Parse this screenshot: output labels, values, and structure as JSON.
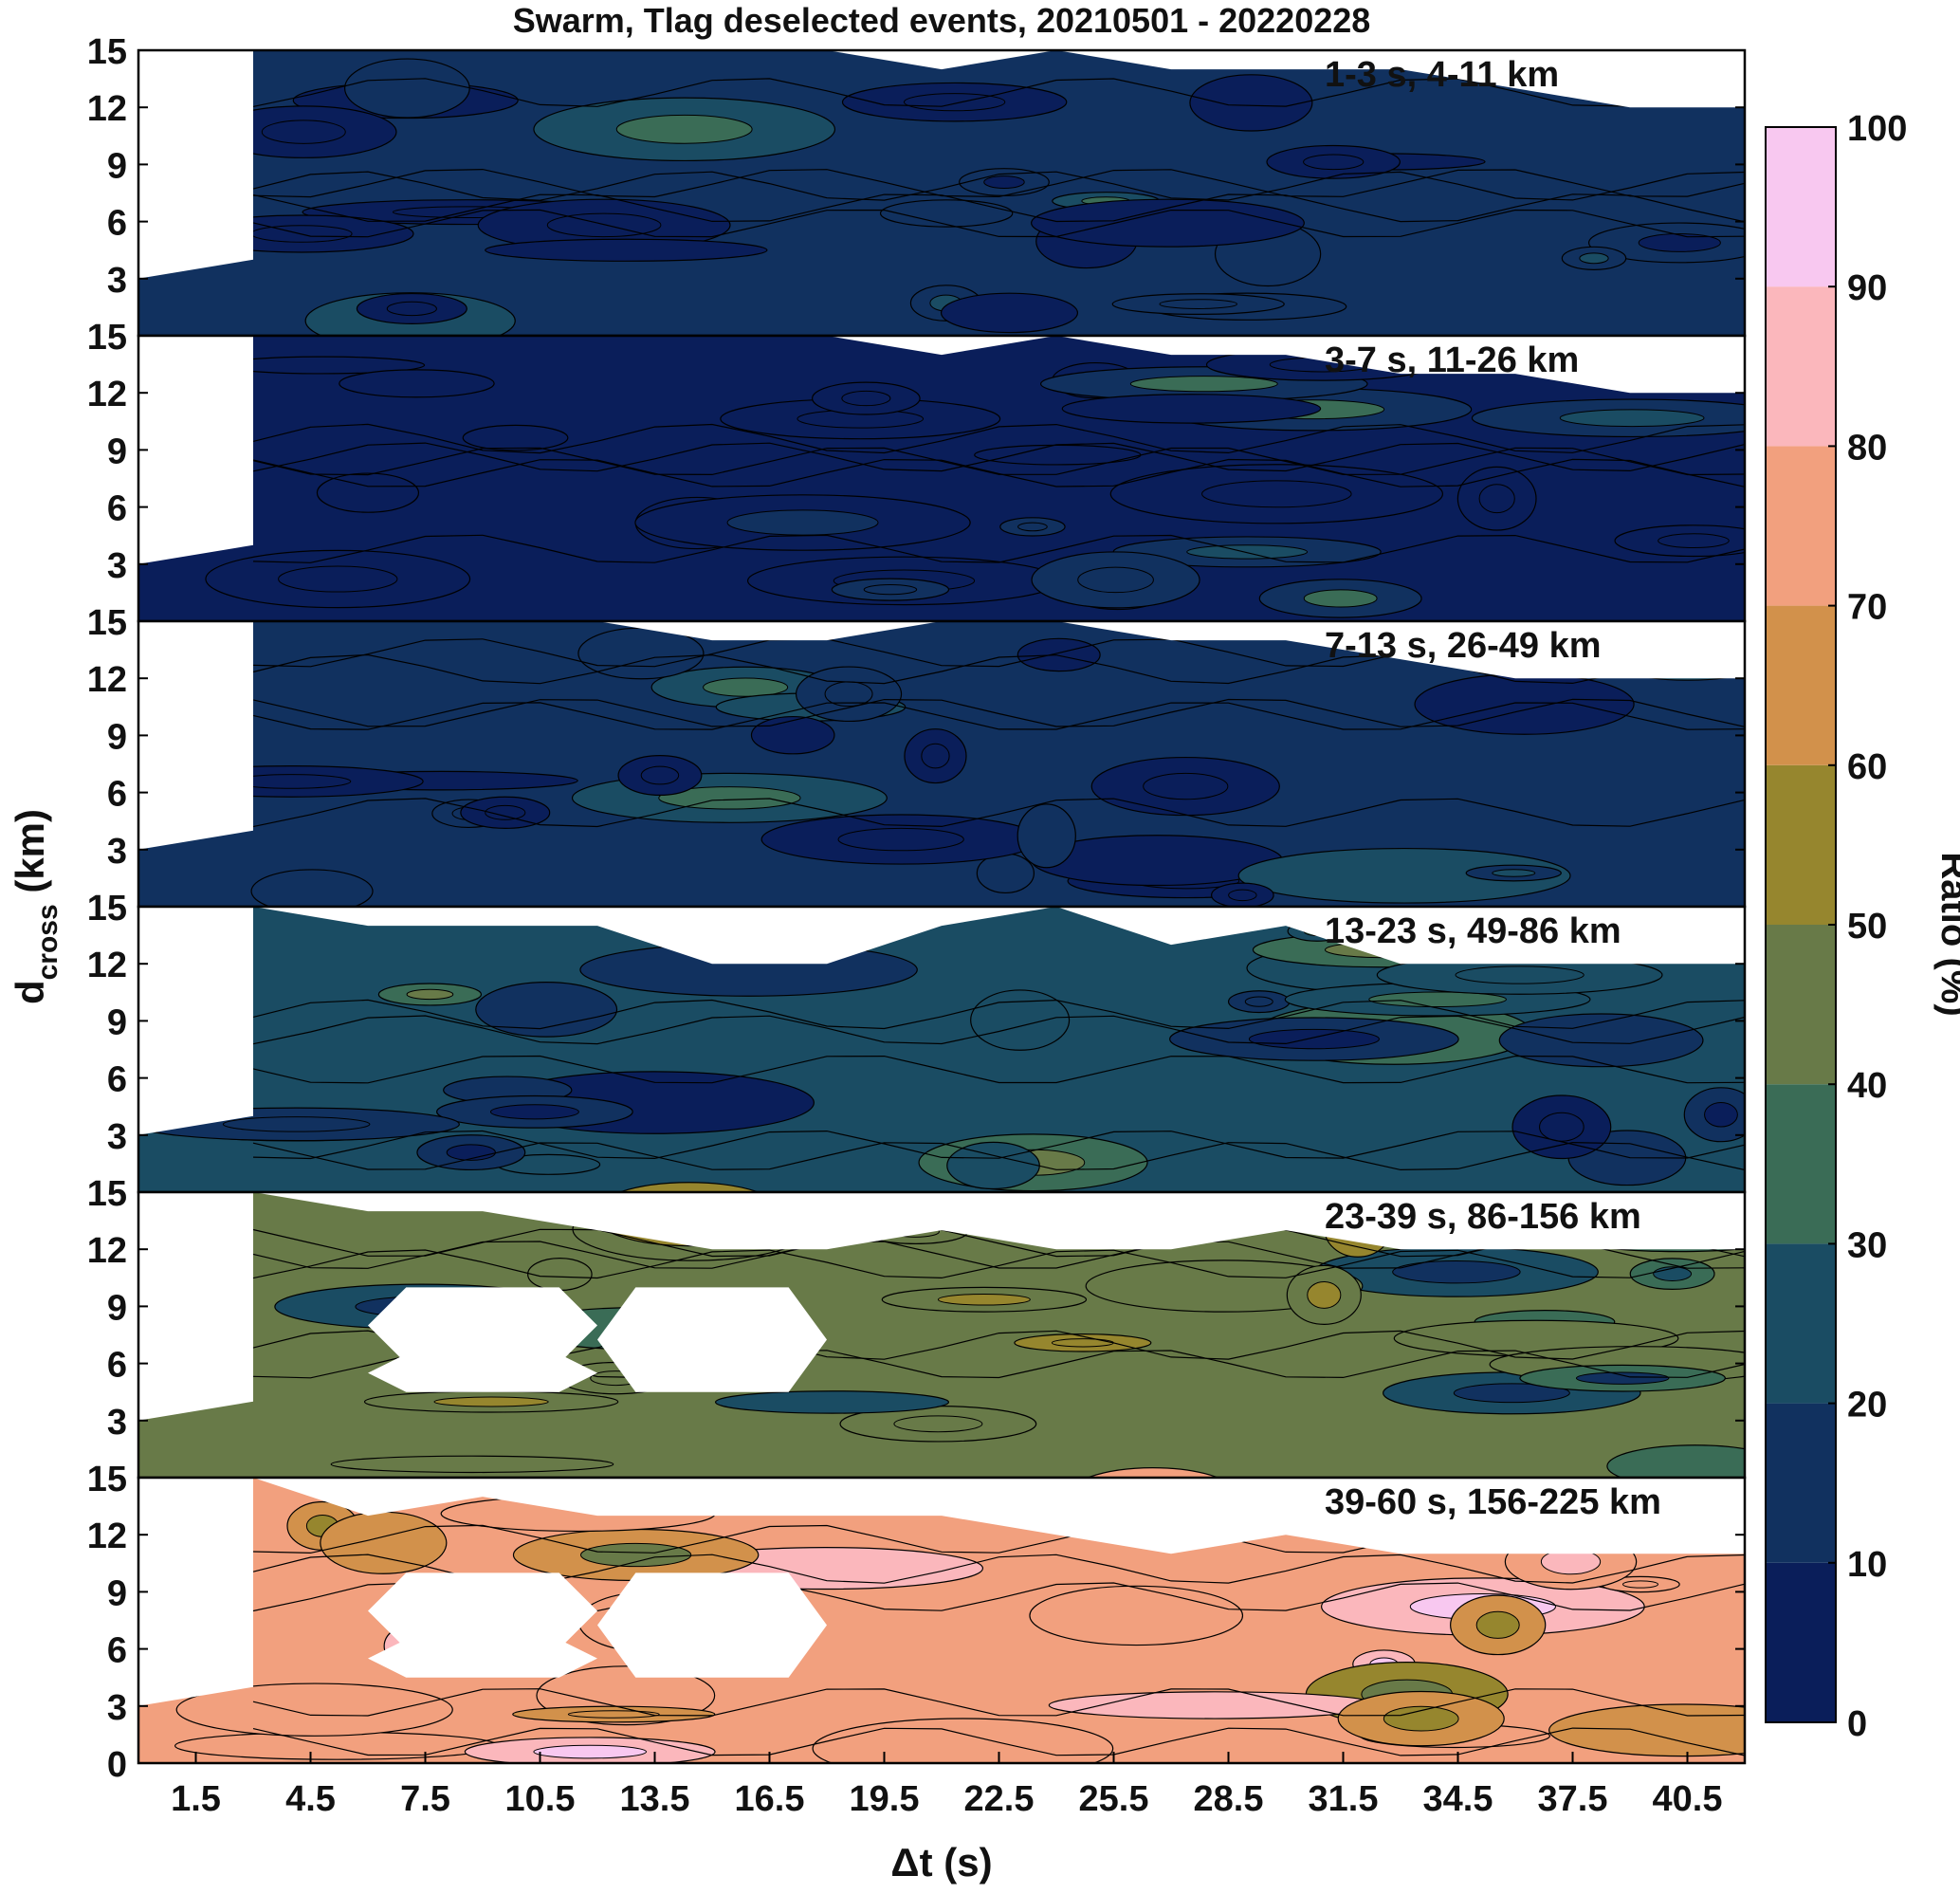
{
  "chart_data": {
    "type": "heatmap",
    "title": "Swarm, Tlag deselected events, 20210501 - 20220228",
    "xlabel": "Δt (s)",
    "ylabel": "d",
    "ylabel_sub": "cross",
    "ylabel_unit": " (km)",
    "xlim": [
      0,
      42
    ],
    "x_ticks": [
      1.5,
      4.5,
      7.5,
      10.5,
      13.5,
      16.5,
      19.5,
      22.5,
      25.5,
      28.5,
      31.5,
      34.5,
      37.5,
      40.5
    ],
    "x_tick_labels": [
      "1.5",
      "4.5",
      "7.5",
      "10.5",
      "13.5",
      "16.5",
      "19.5",
      "22.5",
      "25.5",
      "28.5",
      "31.5",
      "34.5",
      "37.5",
      "40.5"
    ],
    "ylim": [
      0,
      15
    ],
    "y_ticks": [
      3,
      6,
      9,
      12,
      15
    ],
    "bottom_panel_y_ticks": [
      0,
      3,
      6,
      9,
      12,
      15
    ],
    "colorbar": {
      "label": "Ratio (%)",
      "range": [
        0,
        100
      ],
      "ticks": [
        0,
        10,
        20,
        30,
        40,
        50,
        60,
        70,
        80,
        90,
        100
      ],
      "colors": [
        "#0a1e5a",
        "#11315f",
        "#1a4c63",
        "#3a6c56",
        "#687a48",
        "#96862e",
        "#d2914b",
        "#f2a07e",
        "#fbb7bc",
        "#f8c8f0"
      ]
    },
    "panels": [
      {
        "label": "1-3 s, 4-11 km",
        "mean_ratio": 12,
        "blank_top": [
          15,
          15,
          15,
          15,
          15,
          15,
          14,
          15,
          14,
          14,
          14,
          13,
          12,
          12
        ]
      },
      {
        "label": "3-7 s, 11-26 km",
        "mean_ratio": 5,
        "blank_top": [
          15,
          15,
          15,
          15,
          15,
          15,
          14,
          15,
          14,
          14,
          13,
          13,
          12,
          12
        ]
      },
      {
        "label": "7-13 s, 26-49 km",
        "mean_ratio": 12,
        "blank_top": [
          15,
          15,
          15,
          15,
          14,
          14,
          15,
          15,
          14,
          14,
          13,
          12,
          12,
          12
        ]
      },
      {
        "label": "13-23 s, 49-86 km",
        "mean_ratio": 22,
        "blank_top": [
          15,
          14,
          14,
          14,
          12,
          12,
          14,
          15,
          13,
          14,
          12,
          12,
          12,
          12
        ]
      },
      {
        "label": "23-39 s, 86-156 km",
        "mean_ratio": 42,
        "blank_top": [
          15,
          14,
          14,
          13,
          12,
          12,
          13,
          12,
          12,
          13,
          12,
          12,
          12,
          12
        ]
      },
      {
        "label": "39-60 s, 156-225 km",
        "mean_ratio": 72,
        "blank_top": [
          15,
          13,
          14,
          13,
          13,
          13,
          13,
          12,
          11,
          12,
          11,
          11,
          11,
          11
        ]
      }
    ]
  }
}
